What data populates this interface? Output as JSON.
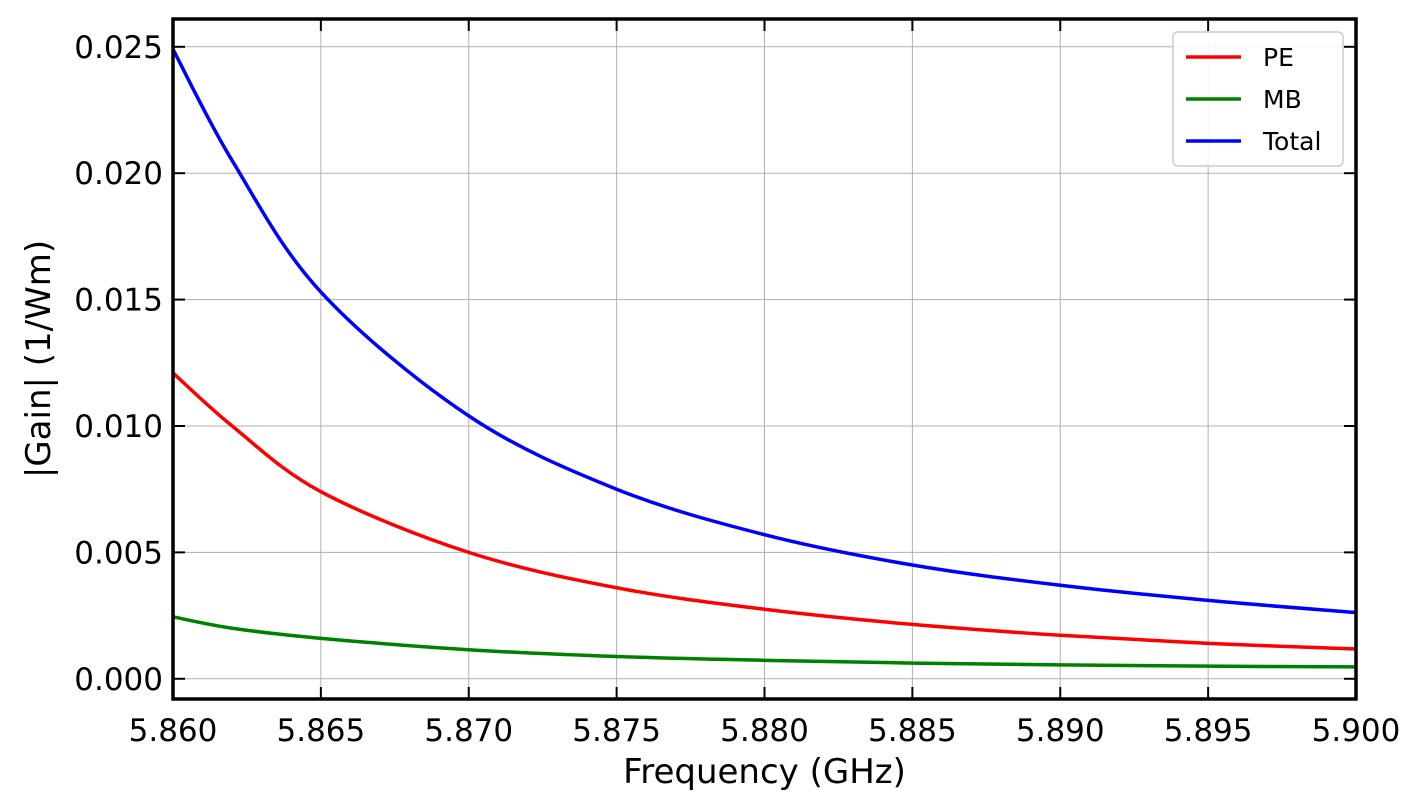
{
  "chart_data": {
    "type": "line",
    "xlabel": "Frequency (GHz)",
    "ylabel": "|Gain| (1/Wm)",
    "xlim": [
      5.86,
      5.9
    ],
    "ylim": [
      -0.0008,
      0.0261
    ],
    "xticks": [
      "5.860",
      "5.865",
      "5.870",
      "5.875",
      "5.880",
      "5.885",
      "5.890",
      "5.895",
      "5.900"
    ],
    "yticks": [
      "0.000",
      "0.005",
      "0.010",
      "0.015",
      "0.020",
      "0.025"
    ],
    "grid": true,
    "legend_position": "top-right",
    "x": [
      5.86,
      5.862,
      5.865,
      5.87,
      5.875,
      5.88,
      5.885,
      5.89,
      5.895,
      5.9
    ],
    "series": [
      {
        "name": "PE",
        "color": "#ff0000",
        "values": [
          0.0121,
          0.01,
          0.0074,
          0.005,
          0.0036,
          0.00275,
          0.00215,
          0.00172,
          0.0014,
          0.00118
        ]
      },
      {
        "name": "MB",
        "color": "#008000",
        "values": [
          0.00245,
          0.002,
          0.0016,
          0.00115,
          0.00088,
          0.00073,
          0.00062,
          0.00055,
          0.0005,
          0.00047
        ]
      },
      {
        "name": "Total",
        "color": "#0000ff",
        "values": [
          0.0249,
          0.0205,
          0.0153,
          0.0104,
          0.0075,
          0.0057,
          0.0045,
          0.0037,
          0.0031,
          0.00262
        ]
      }
    ]
  }
}
